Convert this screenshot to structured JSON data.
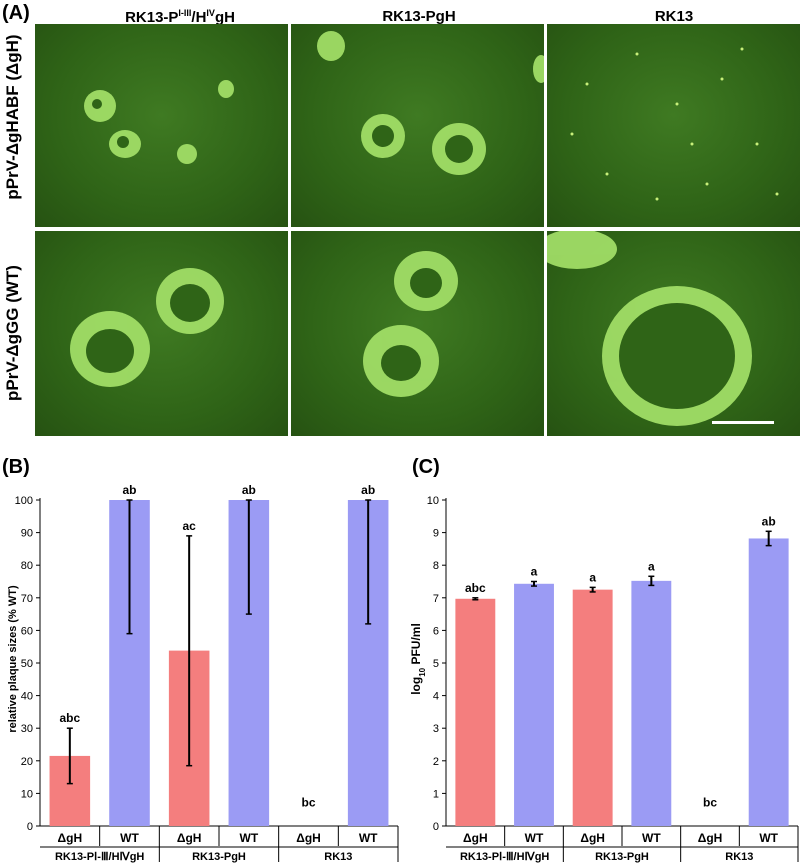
{
  "panel_a": {
    "label": "(A)",
    "columns": [
      "RK13-PⅠ-Ⅲ/HⅣgH",
      "RK13-PgH",
      "RK13"
    ],
    "column_parts": [
      {
        "base": "RK13-P",
        "sup1": "I-III",
        "mid": "/H",
        "sup2": "IV",
        "tail": "gH"
      },
      {
        "base": "RK13-PgH"
      },
      {
        "base": "RK13"
      }
    ],
    "rows": [
      "pPrV-ΔgHABF (ΔgH)",
      "pPrV-ΔgGG (WT)"
    ]
  },
  "chart_data": [
    {
      "panel": "(B)",
      "type": "bar",
      "ylabel": "relative plaque sizes (% WT)",
      "ylim": [
        0,
        100
      ],
      "yticks": [
        0,
        10,
        20,
        30,
        40,
        50,
        60,
        70,
        80,
        90,
        100
      ],
      "categories": [
        "ΔgH",
        "WT",
        "ΔgH",
        "WT",
        "ΔgH",
        "WT"
      ],
      "groups": [
        "RK13-PⅠ-Ⅲ/HⅣgH",
        "RK13-PgH",
        "RK13"
      ],
      "values": [
        21.5,
        100,
        53.8,
        100,
        0,
        100
      ],
      "error_low": [
        13,
        59,
        18.5,
        65,
        0,
        62
      ],
      "error_high": [
        30,
        100,
        89,
        100,
        0,
        100
      ],
      "annotations": [
        "abc",
        "ab",
        "ac",
        "ab",
        "bc",
        "ab"
      ],
      "colors": [
        "#f47e7e",
        "#9b9bf4",
        "#f47e7e",
        "#9b9bf4",
        "#f47e7e",
        "#9b9bf4"
      ]
    },
    {
      "panel": "(C)",
      "type": "bar",
      "ylabel": "log10 PFU/ml",
      "ylabel_parts": {
        "base": "log",
        "sub": "10",
        "rest": " PFU/ml"
      },
      "ylim": [
        0,
        10
      ],
      "yticks": [
        0,
        1,
        2,
        3,
        4,
        5,
        6,
        7,
        8,
        9,
        10
      ],
      "categories": [
        "ΔgH",
        "WT",
        "ΔgH",
        "WT",
        "ΔgH",
        "WT"
      ],
      "groups": [
        "RK13-PⅠ-Ⅲ/HⅣgH",
        "RK13-PgH",
        "RK13"
      ],
      "values": [
        6.97,
        7.43,
        7.25,
        7.52,
        0,
        8.82
      ],
      "error_low": [
        6.94,
        7.36,
        7.18,
        7.38,
        0,
        8.6
      ],
      "error_high": [
        7.0,
        7.5,
        7.32,
        7.66,
        0,
        9.04
      ],
      "annotations": [
        "abc",
        "a",
        "a",
        "a",
        "bc",
        "ab"
      ],
      "colors": [
        "#f47e7e",
        "#9b9bf4",
        "#f47e7e",
        "#9b9bf4",
        "#f47e7e",
        "#9b9bf4"
      ]
    }
  ],
  "scale_bar": "scale-bar"
}
